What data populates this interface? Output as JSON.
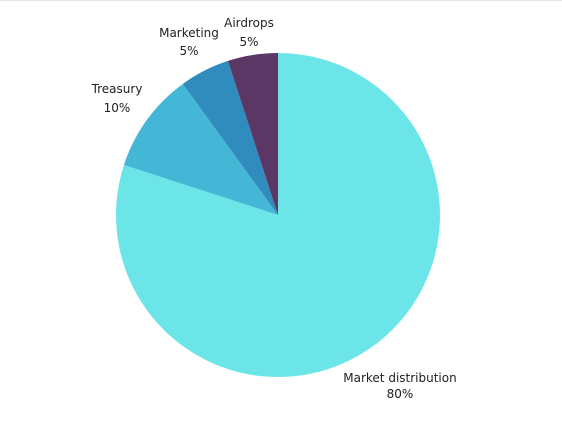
{
  "chart_data": {
    "type": "pie",
    "title": "",
    "slices": [
      {
        "label": "Market distribution",
        "value": 80,
        "value_label": "80%",
        "color": "#6be5e8"
      },
      {
        "label": "Treasury",
        "value": 10,
        "value_label": "10%",
        "color": "#45b7d6"
      },
      {
        "label": "Marketing",
        "value": 5,
        "value_label": "5%",
        "color": "#2f8cbc"
      },
      {
        "label": "Airdrops",
        "value": 5,
        "value_label": "5%",
        "color": "#5b3765"
      }
    ],
    "start_angle": "12 o'clock",
    "direction": "clockwise",
    "legend": "none"
  }
}
